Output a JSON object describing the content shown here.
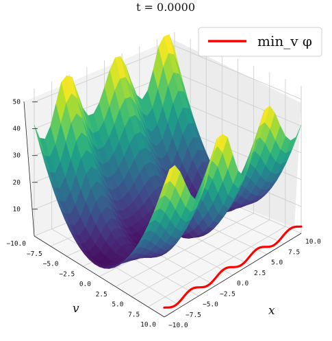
{
  "chart_data": {
    "type": "surface3d",
    "title": "t = 0.0000",
    "xlabel": "x",
    "ylabel": "v",
    "xlim": [
      -10,
      10
    ],
    "ylim": [
      -10,
      10
    ],
    "zlim": [
      0,
      55
    ],
    "x_ticks": [
      "−10.0",
      "−7.5",
      "−5.0",
      "−2.5",
      "0.0",
      "2.5",
      "5.0",
      "7.5",
      "10.0"
    ],
    "y_ticks": [
      "−10.0",
      "−7.5",
      "−5.0",
      "−2.5",
      "0.0",
      "2.5",
      "5.0",
      "7.5",
      "10.0"
    ],
    "z_ticks": [
      "10",
      "20",
      "30",
      "40",
      "50"
    ],
    "colormap": "viridis",
    "legend": {
      "label": "min_v φ",
      "color": "#ff0000",
      "placement": "top-right"
    },
    "grid": true
  }
}
